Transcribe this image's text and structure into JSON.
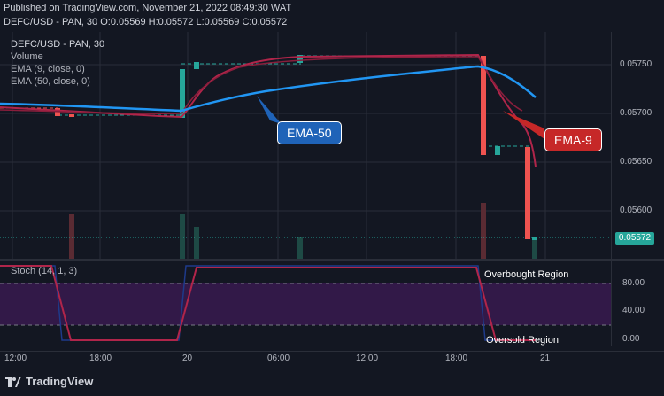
{
  "header": {
    "published": "Published on TradingView.com, November 21, 2022 08:49:30 WAT",
    "ohlc": "DEFC/USD - PAN, 30 O:0.05569 H:0.05572 L:0.05569 C:0.05572"
  },
  "legend": {
    "title": "DEFC/USD - PAN, 30",
    "volume": "Volume",
    "ema9": "EMA (9, close, 0)",
    "ema50": "EMA (50, close, 0)"
  },
  "callouts": {
    "ema50": "EMA-50",
    "ema9": "EMA-9"
  },
  "price_axis": [
    "0.05750",
    "0.05700",
    "0.05650",
    "0.05600"
  ],
  "last_price": "0.05572",
  "stoch": {
    "label": "Stoch (14, 1, 3)",
    "ticks": [
      "80.00",
      "40.00",
      "0.00"
    ],
    "overbought": "Overbought Region",
    "oversold": "Oversold Region"
  },
  "time_axis": [
    "12:00",
    "18:00",
    "20",
    "06:00",
    "12:00",
    "18:00",
    "21"
  ],
  "brand": "TradingView",
  "colors": {
    "up": "#26a69a",
    "down": "#ef5350",
    "ema50": "#2196f3",
    "ema9": "#b0254a",
    "stoch_band": "#7b1fa2"
  }
}
